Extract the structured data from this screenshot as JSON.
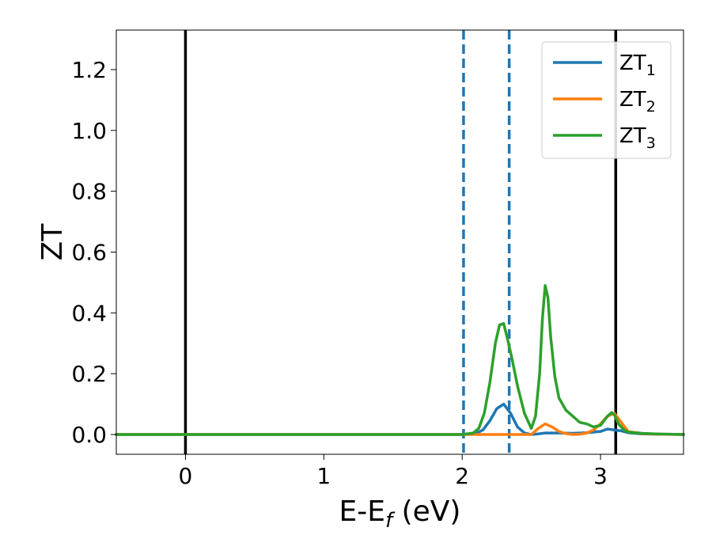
{
  "chart_data": {
    "type": "line",
    "xlabel": {
      "main": "E-E",
      "sub": "f",
      "unit": " (eV)"
    },
    "ylabel": "ZT",
    "xlim": [
      -0.5,
      3.6
    ],
    "ylim": [
      -0.065,
      1.33
    ],
    "xticks": [
      0,
      1,
      2,
      3
    ],
    "xtick_labels": [
      "0",
      "1",
      "2",
      "3"
    ],
    "yticks": [
      0.0,
      0.2,
      0.4,
      0.6,
      0.8,
      1.0,
      1.2
    ],
    "ytick_labels": [
      "0.0",
      "0.2",
      "0.4",
      "0.6",
      "0.8",
      "1.0",
      "1.2"
    ],
    "grid": false,
    "legend_position": "top-right",
    "vertical_lines": [
      {
        "x": 0.0,
        "color": "#000000",
        "style": "solid"
      },
      {
        "x": 3.11,
        "color": "#000000",
        "style": "solid"
      },
      {
        "x": 2.01,
        "color": "#1f77b4",
        "style": "dashed"
      },
      {
        "x": 2.34,
        "color": "#1f77b4",
        "style": "dashed"
      }
    ],
    "series": [
      {
        "name": "ZT",
        "sub": "1",
        "color": "#1f77b4",
        "x": [
          -0.5,
          2.0,
          2.1,
          2.15,
          2.2,
          2.25,
          2.3,
          2.35,
          2.4,
          2.45,
          2.5,
          2.55,
          2.6,
          2.7,
          2.8,
          2.9,
          3.0,
          3.05,
          3.1,
          3.15,
          3.2,
          3.3,
          3.4,
          3.6
        ],
        "y": [
          0.0,
          0.0,
          0.003,
          0.015,
          0.045,
          0.085,
          0.1,
          0.07,
          0.025,
          0.005,
          0.0,
          0.002,
          0.005,
          0.005,
          0.004,
          0.006,
          0.01,
          0.018,
          0.015,
          0.012,
          0.006,
          0.002,
          0.001,
          0.0
        ]
      },
      {
        "name": "ZT",
        "sub": "2",
        "color": "#ff7f0e",
        "x": [
          -0.5,
          2.5,
          2.55,
          2.6,
          2.65,
          2.7,
          2.75,
          2.8,
          2.85,
          2.9,
          2.95,
          3.0,
          3.05,
          3.1,
          3.15,
          3.2,
          3.3,
          3.4,
          3.6
        ],
        "y": [
          0.0,
          0.0,
          0.02,
          0.035,
          0.025,
          0.01,
          0.003,
          0.0,
          0.001,
          0.005,
          0.015,
          0.035,
          0.06,
          0.07,
          0.04,
          0.01,
          0.003,
          0.001,
          0.0
        ]
      },
      {
        "name": "ZT",
        "sub": "3",
        "color": "#2ca02c",
        "x": [
          -0.5,
          2.0,
          2.08,
          2.12,
          2.16,
          2.2,
          2.24,
          2.27,
          2.3,
          2.33,
          2.36,
          2.4,
          2.45,
          2.5,
          2.53,
          2.56,
          2.58,
          2.6,
          2.62,
          2.64,
          2.67,
          2.7,
          2.75,
          2.8,
          2.85,
          2.9,
          2.95,
          3.0,
          3.05,
          3.08,
          3.1,
          3.13,
          3.17,
          3.2,
          3.3,
          3.4,
          3.6
        ],
        "y": [
          0.0,
          0.0,
          0.005,
          0.02,
          0.07,
          0.17,
          0.3,
          0.36,
          0.365,
          0.31,
          0.25,
          0.16,
          0.07,
          0.02,
          0.06,
          0.2,
          0.38,
          0.49,
          0.45,
          0.32,
          0.19,
          0.12,
          0.08,
          0.06,
          0.04,
          0.035,
          0.025,
          0.03,
          0.06,
          0.072,
          0.065,
          0.035,
          0.015,
          0.008,
          0.004,
          0.002,
          0.0
        ]
      }
    ]
  }
}
